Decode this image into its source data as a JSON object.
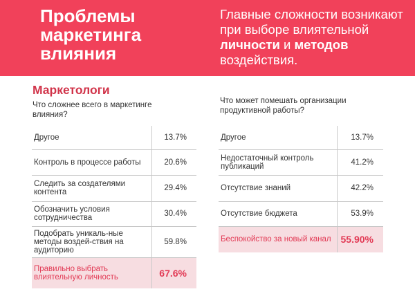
{
  "header": {
    "title_lines": [
      "Проблемы",
      "маркетинга",
      "влияния"
    ],
    "subtitle": {
      "part1": "Главные сложности возникают при выборе влиятельной ",
      "bold1": "личности",
      "part2": " и ",
      "bold2": "методов",
      "part3": " воздействия."
    },
    "banner_color": "#f1415a"
  },
  "left": {
    "heading": "Маркетологи",
    "question": "Что сложнее всего в маркетинге влияния?",
    "rows": [
      {
        "label": "Другое",
        "value": "13.7%"
      },
      {
        "label": "Контроль в процессе работы",
        "value": "20.6%"
      },
      {
        "label": "Следить за создателями контента",
        "value": "29.4%"
      },
      {
        "label": "Обозначить условия сотрудничества",
        "value": "30.4%"
      },
      {
        "label": "Подобрать уникаль-ные методы воздей-ствия на аудиторию",
        "value": "59.8%"
      }
    ],
    "highlight": {
      "label": "Правильно выбрать влиятельную личность",
      "value": "67.6%"
    }
  },
  "right": {
    "question": "Что может помешать организации продуктивной работы?",
    "rows": [
      {
        "label": "Другое",
        "value": "13.7%"
      },
      {
        "label": "Недостаточный контроль публикаций",
        "value": "41.2%"
      },
      {
        "label": "Отсутствие знаний",
        "value": "42.2%"
      },
      {
        "label": "Отсутствие бюджета",
        "value": "53.9%"
      }
    ],
    "highlight": {
      "label": "Беспокойство за новый канал",
      "value": "55.90%"
    }
  },
  "colors": {
    "accent": "#e23a55",
    "highlight_bg": "#f7dde1"
  }
}
